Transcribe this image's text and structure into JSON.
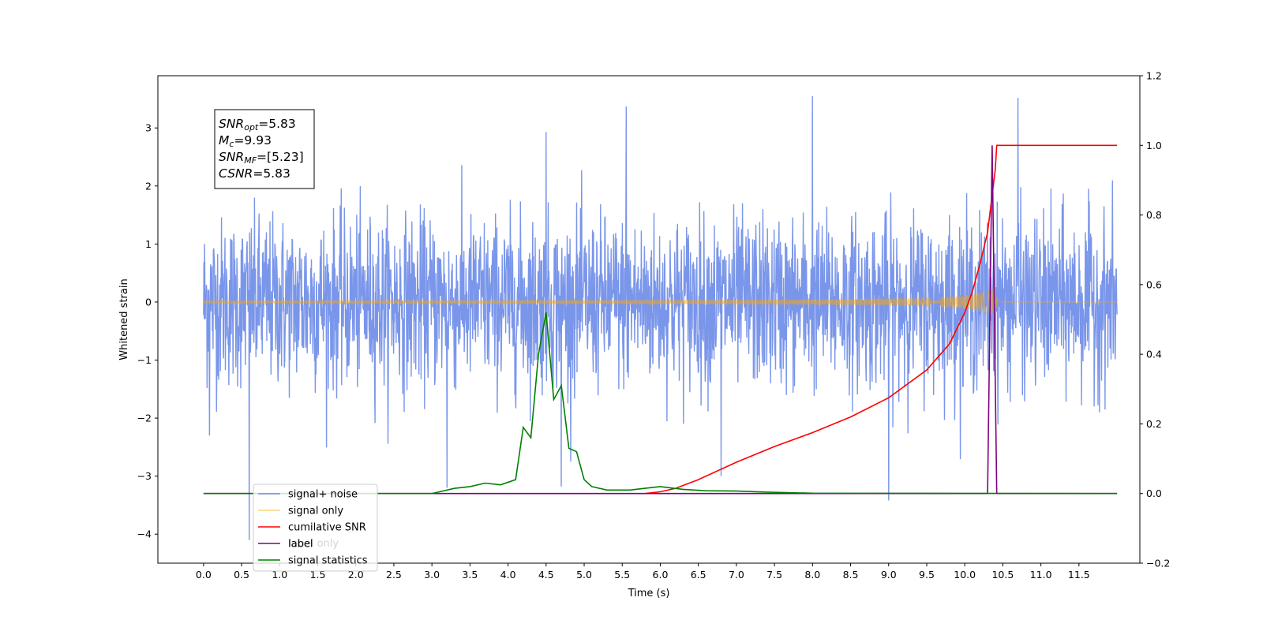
{
  "chart_data": {
    "type": "line",
    "xlabel": "Time (s)",
    "ylabel": "Whitened strain",
    "y2label": "",
    "xlim": [
      -0.6,
      12.3
    ],
    "ylim": [
      -4.5,
      3.9
    ],
    "y2lim": [
      -0.2,
      1.2
    ],
    "x_ticks": [
      "0.0",
      "0.5",
      "1.0",
      "1.5",
      "2.0",
      "2.5",
      "3.0",
      "3.5",
      "4.0",
      "4.5",
      "5.0",
      "5.5",
      "6.0",
      "6.5",
      "7.0",
      "7.5",
      "8.0",
      "8.5",
      "9.0",
      "9.5",
      "10.0",
      "10.5",
      "11.0",
      "11.5"
    ],
    "x_tick_values": [
      0,
      0.5,
      1,
      1.5,
      2,
      2.5,
      3,
      3.5,
      4,
      4.5,
      5,
      5.5,
      6,
      6.5,
      7,
      7.5,
      8,
      8.5,
      9,
      9.5,
      10,
      10.5,
      11,
      11.5
    ],
    "y_ticks": [
      "−4",
      "−3",
      "−2",
      "−1",
      "0",
      "1",
      "2",
      "3"
    ],
    "y_tick_values": [
      -4,
      -3,
      -2,
      -1,
      0,
      1,
      2,
      3
    ],
    "y2_ticks": [
      "−0.2",
      "0.0",
      "0.2",
      "0.4",
      "0.6",
      "0.8",
      "1.0",
      "1.2"
    ],
    "y2_tick_values": [
      -0.2,
      0,
      0.2,
      0.4,
      0.6,
      0.8,
      1.0,
      1.2
    ],
    "grid": false,
    "legend_placement": "lower-left",
    "annotation": {
      "lines": [
        {
          "name": "SNR",
          "sub": "opt",
          "value": "=5.83"
        },
        {
          "name": "M",
          "sub": "c",
          "value": "=9.93"
        },
        {
          "name": "SNR",
          "sub": "MF",
          "value": "=[5.23]"
        },
        {
          "name": "CSNR",
          "sub": "",
          "value": "=5.83"
        }
      ]
    },
    "legend": [
      {
        "label": "signal+ noise",
        "color": "#4169e1",
        "opacity": 0.7
      },
      {
        "label": "signal only",
        "color": "#ffa500",
        "opacity": 0.5
      },
      {
        "label": "cumilative SNR",
        "color": "#ff0000",
        "opacity": 1
      },
      {
        "label": "label",
        "color": "#800080",
        "opacity": 1
      },
      {
        "label": "signal statistics",
        "color": "#008000",
        "opacity": 1
      }
    ],
    "hidden_text": "label only",
    "series": [
      {
        "name": "signal+ noise",
        "axis": "left",
        "kind": "noise",
        "x_range": [
          0,
          12.0
        ],
        "envelope_typical": 1.6,
        "max": 3.55,
        "min": -4.12,
        "spikes": [
          [
            0.6,
            -4.1
          ],
          [
            0.08,
            -2.3
          ],
          [
            5.55,
            3.37
          ],
          [
            8.0,
            3.55
          ],
          [
            10.7,
            3.52
          ],
          [
            9.0,
            -3.42
          ],
          [
            3.2,
            -3.2
          ],
          [
            4.7,
            -3.18
          ],
          [
            4.5,
            2.93
          ],
          [
            6.8,
            -3.0
          ]
        ]
      },
      {
        "name": "signal only",
        "axis": "left",
        "kind": "chirp",
        "x_range": [
          0,
          12.0
        ],
        "merger_time": 10.42,
        "peak_amplitude": 0.32
      },
      {
        "name": "cumilative SNR",
        "axis": "right",
        "x": [
          5.8,
          6.0,
          6.2,
          6.5,
          7.0,
          7.5,
          8.0,
          8.5,
          9.0,
          9.5,
          9.8,
          10.0,
          10.1,
          10.2,
          10.3,
          10.4,
          10.42,
          10.5,
          11.0,
          11.5,
          12.0
        ],
        "values": [
          0.0,
          0.005,
          0.015,
          0.04,
          0.09,
          0.135,
          0.175,
          0.22,
          0.275,
          0.355,
          0.43,
          0.52,
          0.58,
          0.66,
          0.75,
          0.93,
          1.0,
          1.0,
          1.0,
          1.0,
          1.0
        ]
      },
      {
        "name": "label",
        "axis": "right",
        "x": [
          0,
          10.3,
          10.36,
          10.42,
          12.0
        ],
        "values": [
          0,
          0,
          1.0,
          0,
          0
        ]
      },
      {
        "name": "signal statistics",
        "axis": "right",
        "x": [
          0,
          3.0,
          3.1,
          3.3,
          3.5,
          3.7,
          3.9,
          4.1,
          4.2,
          4.3,
          4.4,
          4.5,
          4.6,
          4.7,
          4.8,
          4.9,
          5.0,
          5.1,
          5.3,
          5.6,
          5.8,
          6.0,
          6.3,
          6.6,
          7.0,
          7.4,
          8.0,
          12.0
        ],
        "values": [
          0,
          0,
          0.005,
          0.015,
          0.02,
          0.03,
          0.025,
          0.04,
          0.19,
          0.16,
          0.4,
          0.52,
          0.27,
          0.31,
          0.13,
          0.12,
          0.04,
          0.02,
          0.01,
          0.01,
          0.015,
          0.02,
          0.012,
          0.008,
          0.007,
          0.004,
          0.001,
          0
        ]
      }
    ]
  }
}
